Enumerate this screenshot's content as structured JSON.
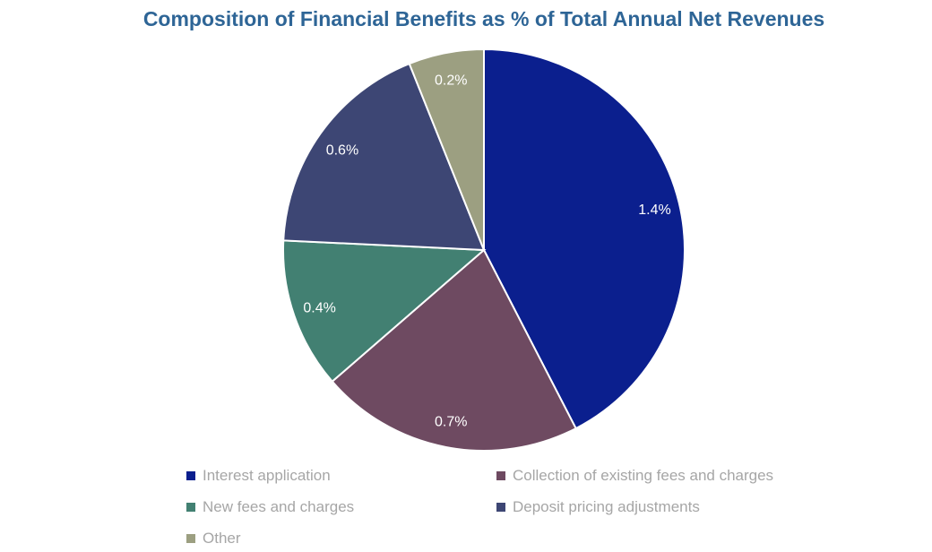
{
  "chart_data": {
    "type": "pie",
    "title": "Composition of Financial Benefits as % of Total Annual Net Revenues",
    "unit": "%",
    "start": "top, clockwise",
    "legend_position": "bottom",
    "slices": [
      {
        "name": "Interest application",
        "value": 1.4,
        "label": "1.4%",
        "color": "#0b1f8e"
      },
      {
        "name": "Collection of existing fees and charges",
        "value": 0.7,
        "label": "0.7%",
        "color": "#6e4a61"
      },
      {
        "name": "New fees and charges",
        "value": 0.4,
        "label": "0.4%",
        "color": "#428072"
      },
      {
        "name": "Deposit pricing adjustments",
        "value": 0.6,
        "label": "0.6%",
        "color": "#3d4674"
      },
      {
        "name": "Other",
        "value": 0.2,
        "label": "0.2%",
        "color": "#9c9f81"
      }
    ]
  }
}
